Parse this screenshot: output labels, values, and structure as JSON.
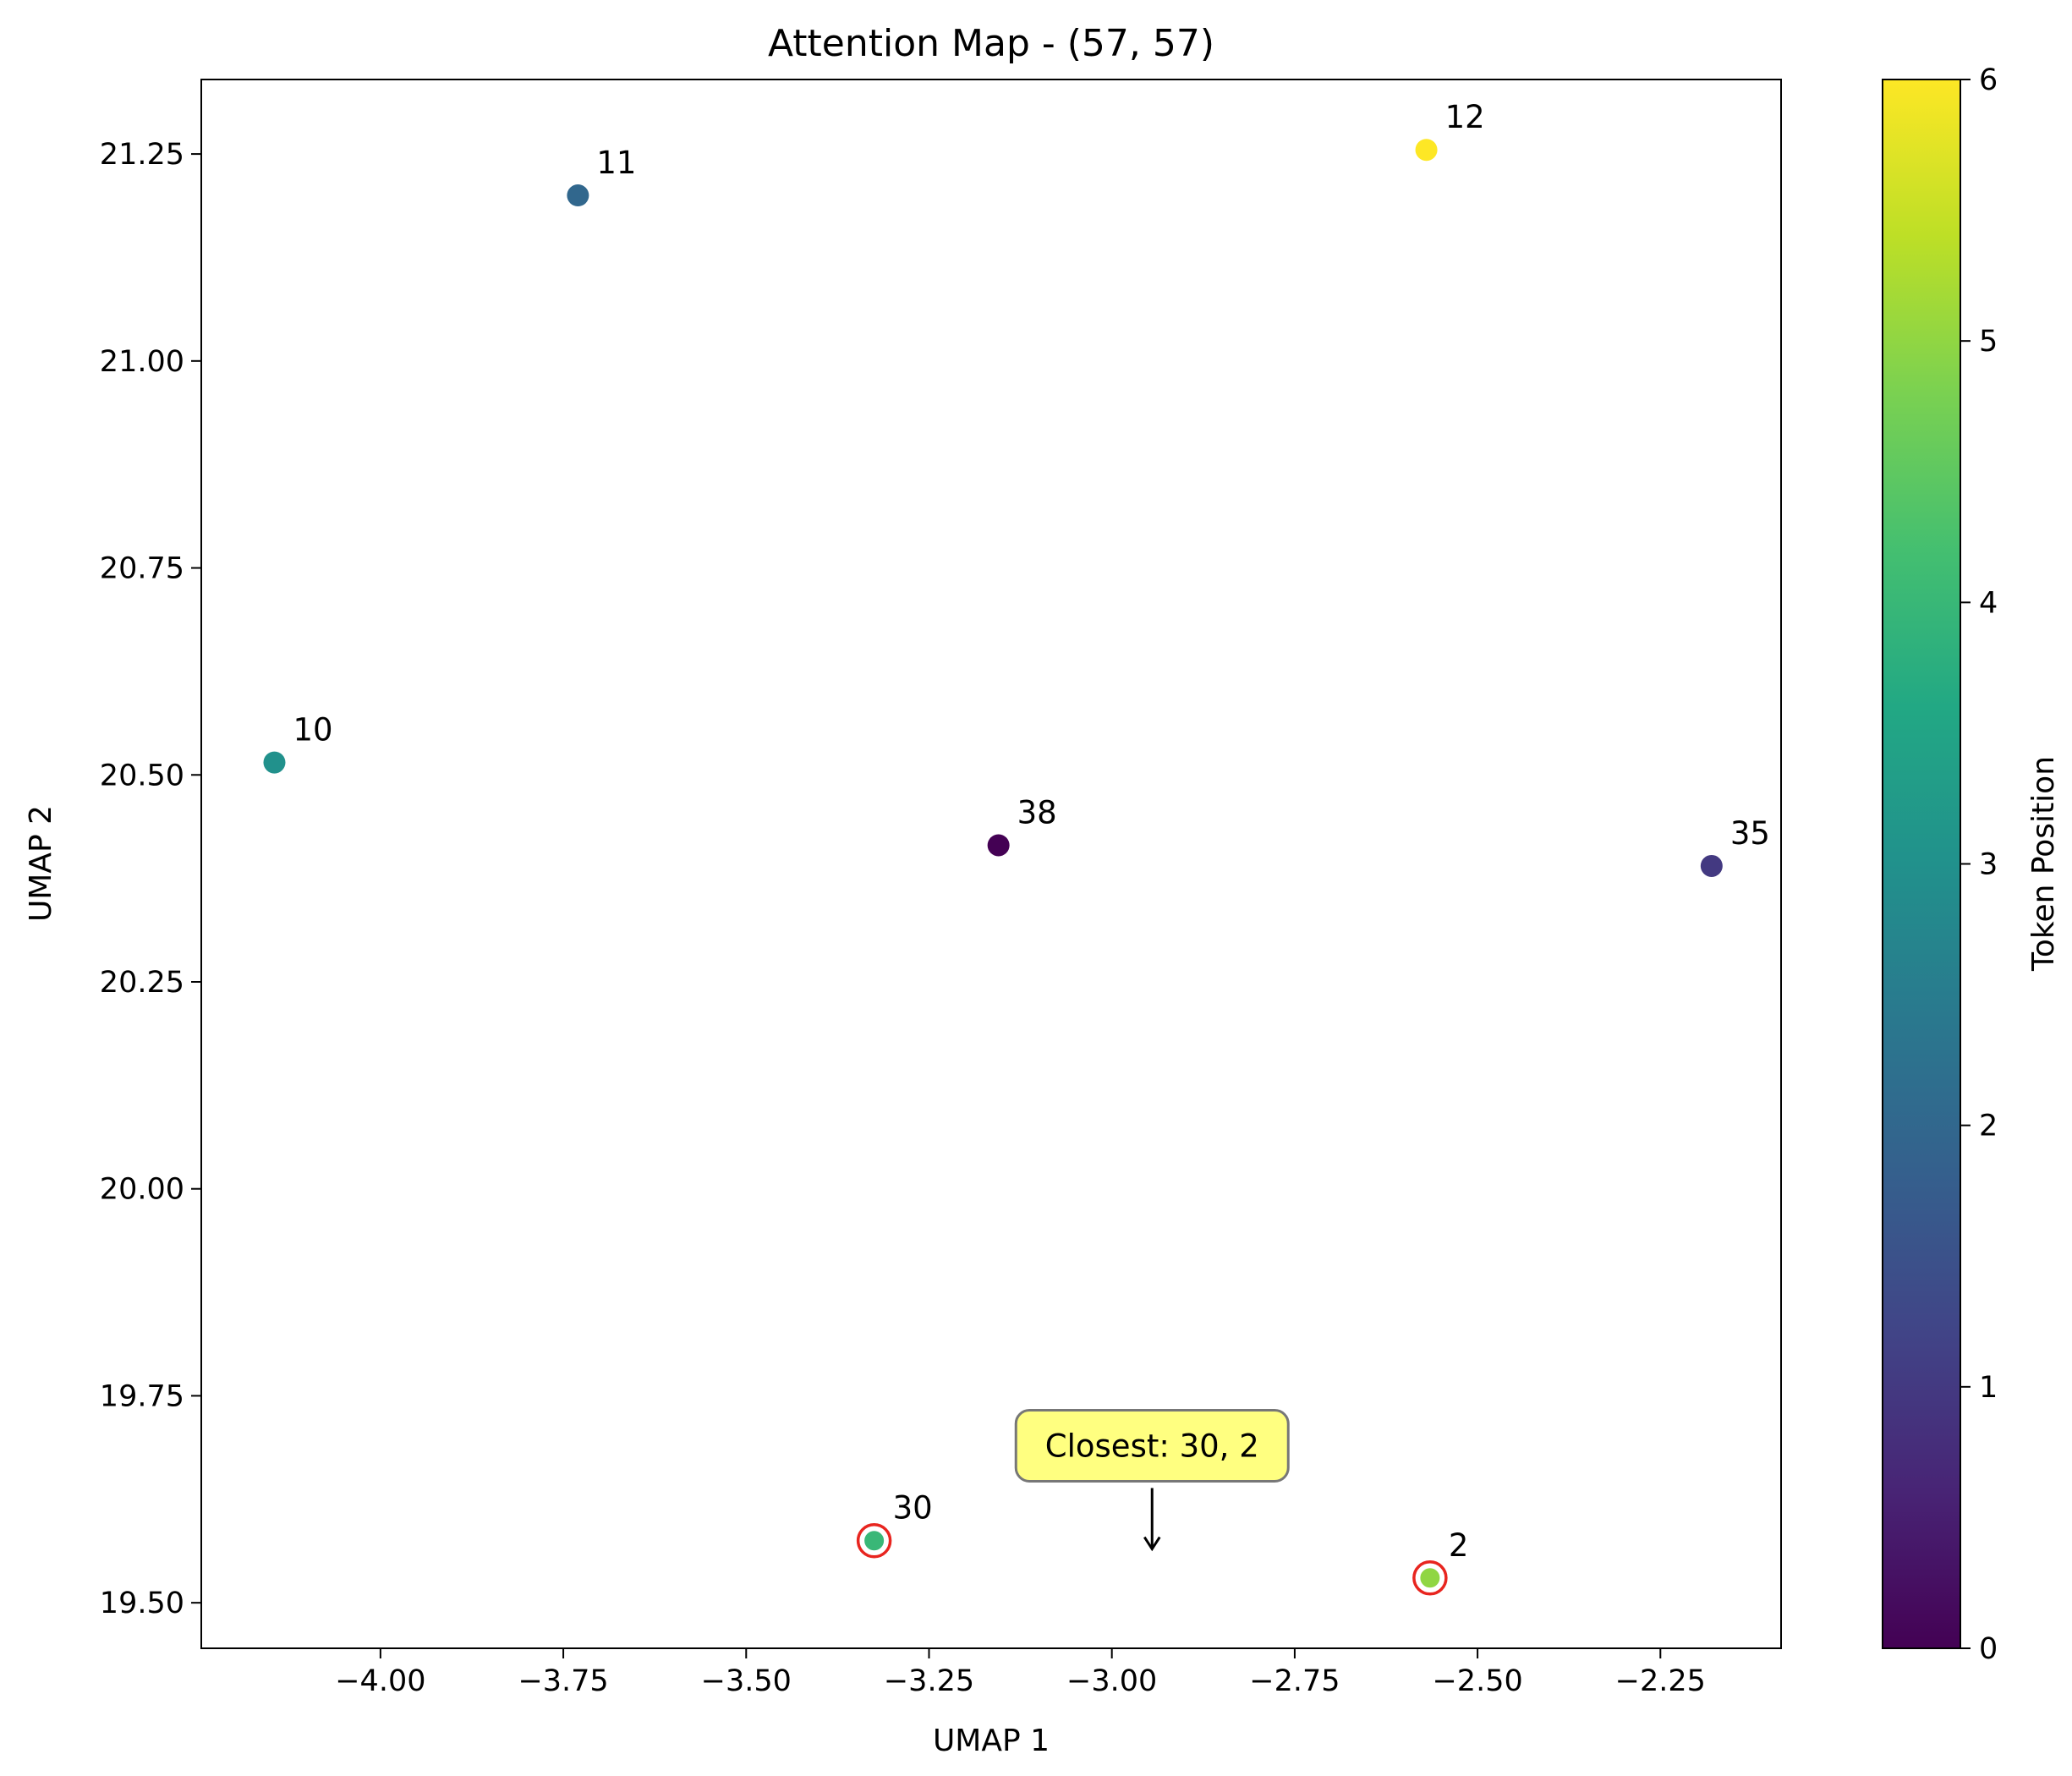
{
  "chart_data": {
    "type": "scatter",
    "title": "Attention Map - (57, 57)",
    "xlabel": "UMAP 1",
    "ylabel": "UMAP 2",
    "xlim": [
      -4.245,
      -2.085
    ],
    "ylim": [
      19.445,
      21.34
    ],
    "xticks": [
      -4.0,
      -3.75,
      -3.5,
      -3.25,
      -3.0,
      -2.75,
      -2.5,
      -2.25
    ],
    "xtick_labels": [
      "−4.00",
      "−3.75",
      "−3.50",
      "−3.25",
      "−3.00",
      "−2.75",
      "−2.50",
      "−2.25"
    ],
    "yticks": [
      19.5,
      19.75,
      20.0,
      20.25,
      20.5,
      20.75,
      21.0,
      21.25
    ],
    "ytick_labels": [
      "19.50",
      "19.75",
      "20.00",
      "20.25",
      "20.50",
      "20.75",
      "21.00",
      "21.25"
    ],
    "grid": false,
    "points": [
      {
        "label": "11",
        "x": -3.73,
        "y": 21.2,
        "color_value": 2
      },
      {
        "label": "12",
        "x": -2.57,
        "y": 21.255,
        "color_value": 6
      },
      {
        "label": "10",
        "x": -4.145,
        "y": 20.515,
        "color_value": 3
      },
      {
        "label": "38",
        "x": -3.155,
        "y": 20.415,
        "color_value": 0
      },
      {
        "label": "35",
        "x": -2.18,
        "y": 20.39,
        "color_value": 1
      },
      {
        "label": "30",
        "x": -3.325,
        "y": 19.575,
        "color_value": 4,
        "highlighted": true
      },
      {
        "label": "2",
        "x": -2.565,
        "y": 19.53,
        "color_value": 5,
        "highlighted": true
      }
    ],
    "highlight_color": "#e8251f",
    "annotation": {
      "text": "Closest: 30, 2",
      "x": -2.945,
      "y": 19.565,
      "box_color": "#ffff80"
    },
    "colorbar": {
      "label": "Token Position",
      "colormap": "viridis",
      "range": [
        0,
        6
      ],
      "ticks": [
        0,
        1,
        2,
        3,
        4,
        5,
        6
      ],
      "tick_labels": [
        "0",
        "1",
        "2",
        "3",
        "4",
        "5",
        "6"
      ]
    }
  }
}
